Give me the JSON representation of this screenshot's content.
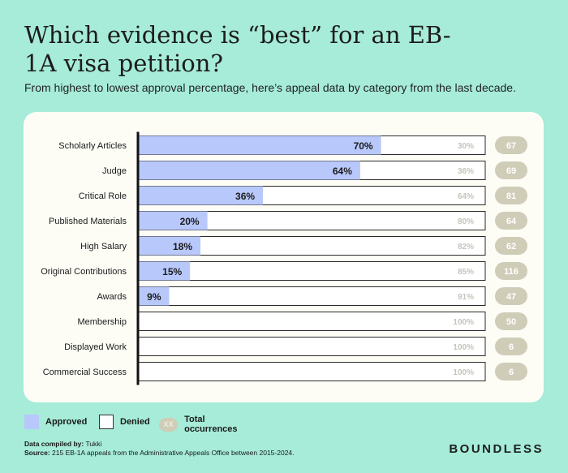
{
  "header": {
    "title": "Which evidence is “best” for an EB-1A visa petition?",
    "subtitle": "From highest to lowest approval percentage, here’s appeal data by category from the last decade."
  },
  "chart_data": {
    "type": "bar",
    "orientation": "horizontal",
    "stacked": true,
    "unit": "%",
    "categories": [
      "Scholarly Articles",
      "Judge",
      "Critical Role",
      "Published Materials",
      "High Salary",
      "Original Contributions",
      "Awards",
      "Membership",
      "Displayed Work",
      "Commercial Success"
    ],
    "series": [
      {
        "name": "Approved",
        "values": [
          70,
          64,
          36,
          20,
          18,
          15,
          9,
          0,
          0,
          0
        ],
        "color": "#b8c8fb"
      },
      {
        "name": "Denied",
        "values": [
          30,
          36,
          64,
          80,
          82,
          85,
          91,
          100,
          100,
          100
        ],
        "color": "#ffffff"
      }
    ],
    "totals": {
      "name": "Total occurrences",
      "values": [
        67,
        69,
        81,
        64,
        62,
        116,
        47,
        50,
        6,
        6
      ],
      "color": "#cfcdb8"
    },
    "xlim": [
      0,
      100
    ]
  },
  "legend": {
    "approved": "Approved",
    "denied": "Denied",
    "total_placeholder": "XX",
    "total": "Total occurrences"
  },
  "footer": {
    "compiled_label": "Data compiled by:",
    "compiled_value": "Tukki",
    "source_label": "Source:",
    "source_value": "215 EB-1A appeals from the Administrative Appeals Office between 2015-2024."
  },
  "brand": "BOUNDLESS",
  "colors": {
    "background": "#a6ecd8",
    "panel": "#fdfdf6",
    "approved": "#b8c8fb",
    "denied_text": "#c4c4bc",
    "pill": "#cfcdb8",
    "pill_text": "#ffffff"
  }
}
